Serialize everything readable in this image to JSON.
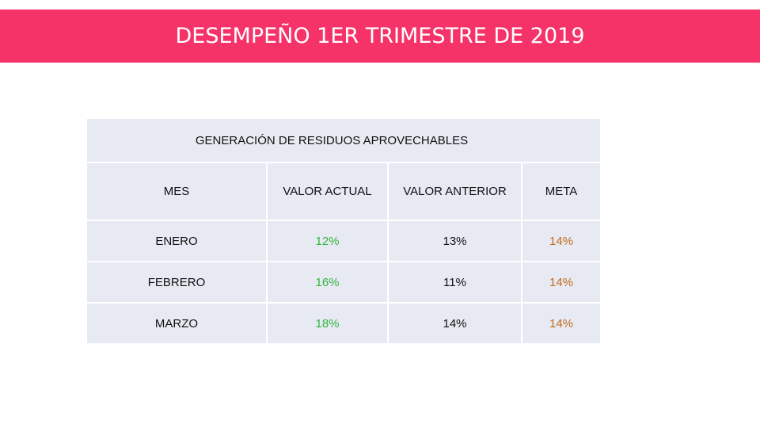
{
  "slide": {
    "title": "DESEMPEÑO 1ER TRIMESTRE DE 2019"
  },
  "table": {
    "title": "GENERACIÓN DE RESIDUOS APROVECHABLES",
    "headers": {
      "month": "MES",
      "current": "VALOR ACTUAL",
      "previous": "VALOR ANTERIOR",
      "target": "META"
    },
    "rows": [
      {
        "month": "ENERO",
        "current": "12%",
        "previous": "13%",
        "target": "14%"
      },
      {
        "month": "FEBRERO",
        "current": "16%",
        "previous": "11%",
        "target": "14%"
      },
      {
        "month": "MARZO",
        "current": "18%",
        "previous": "14%",
        "target": "14%"
      }
    ]
  },
  "colors": {
    "banner": "#f53369",
    "table_background": "#e8eaf3",
    "current_value": "#2db83d",
    "target_value": "#c26a1a"
  }
}
